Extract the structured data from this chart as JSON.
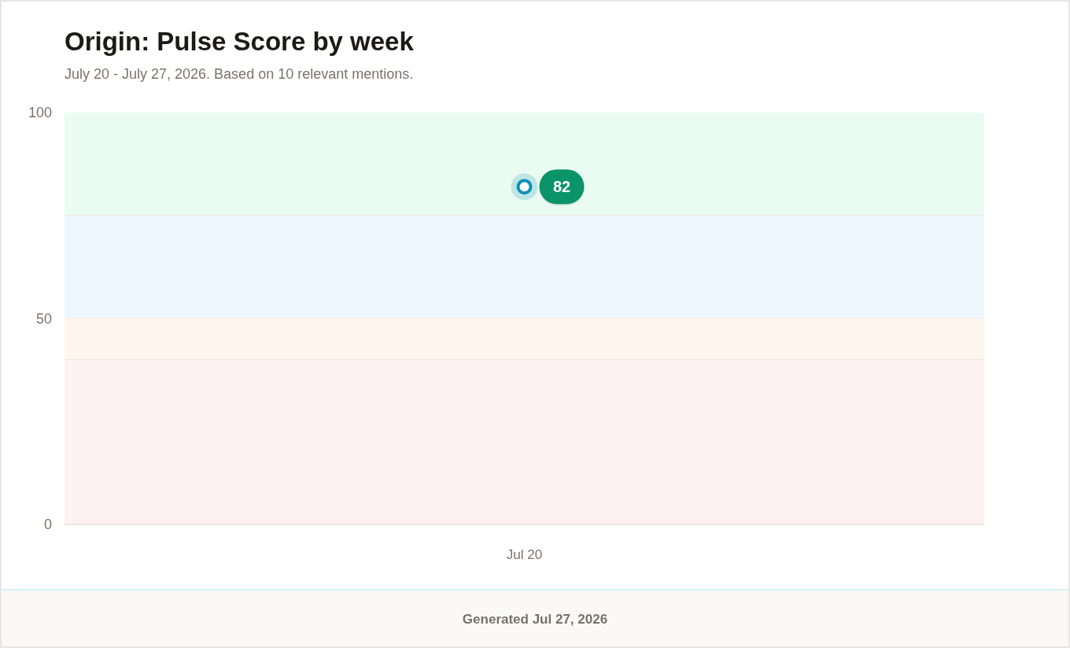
{
  "chart_data": {
    "type": "line",
    "title": "Origin: Pulse Score by week",
    "subtitle": "July 20 - July 27, 2026. Based on 10 relevant mentions.",
    "categories": [
      "Jul 20"
    ],
    "series": [
      {
        "color": "#1190b8",
        "values": [
          82
        ]
      }
    ],
    "ylim": [
      0,
      100
    ],
    "yticks": [
      0,
      50,
      100
    ],
    "bands": [
      {
        "axis": "y",
        "from": 75,
        "to": 100,
        "color": "#eafbf2"
      },
      {
        "axis": "y",
        "from": 50,
        "to": 75,
        "color": "#eff7fe"
      },
      {
        "axis": "y",
        "from": 40,
        "to": 50,
        "color": "#fef6ec"
      },
      {
        "axis": "y",
        "from": 0,
        "to": 40,
        "color": "#fdf1f1"
      }
    ],
    "marker": "circle",
    "data_labels": true,
    "annotations": [
      "Generated Jul 27, 2026"
    ]
  }
}
